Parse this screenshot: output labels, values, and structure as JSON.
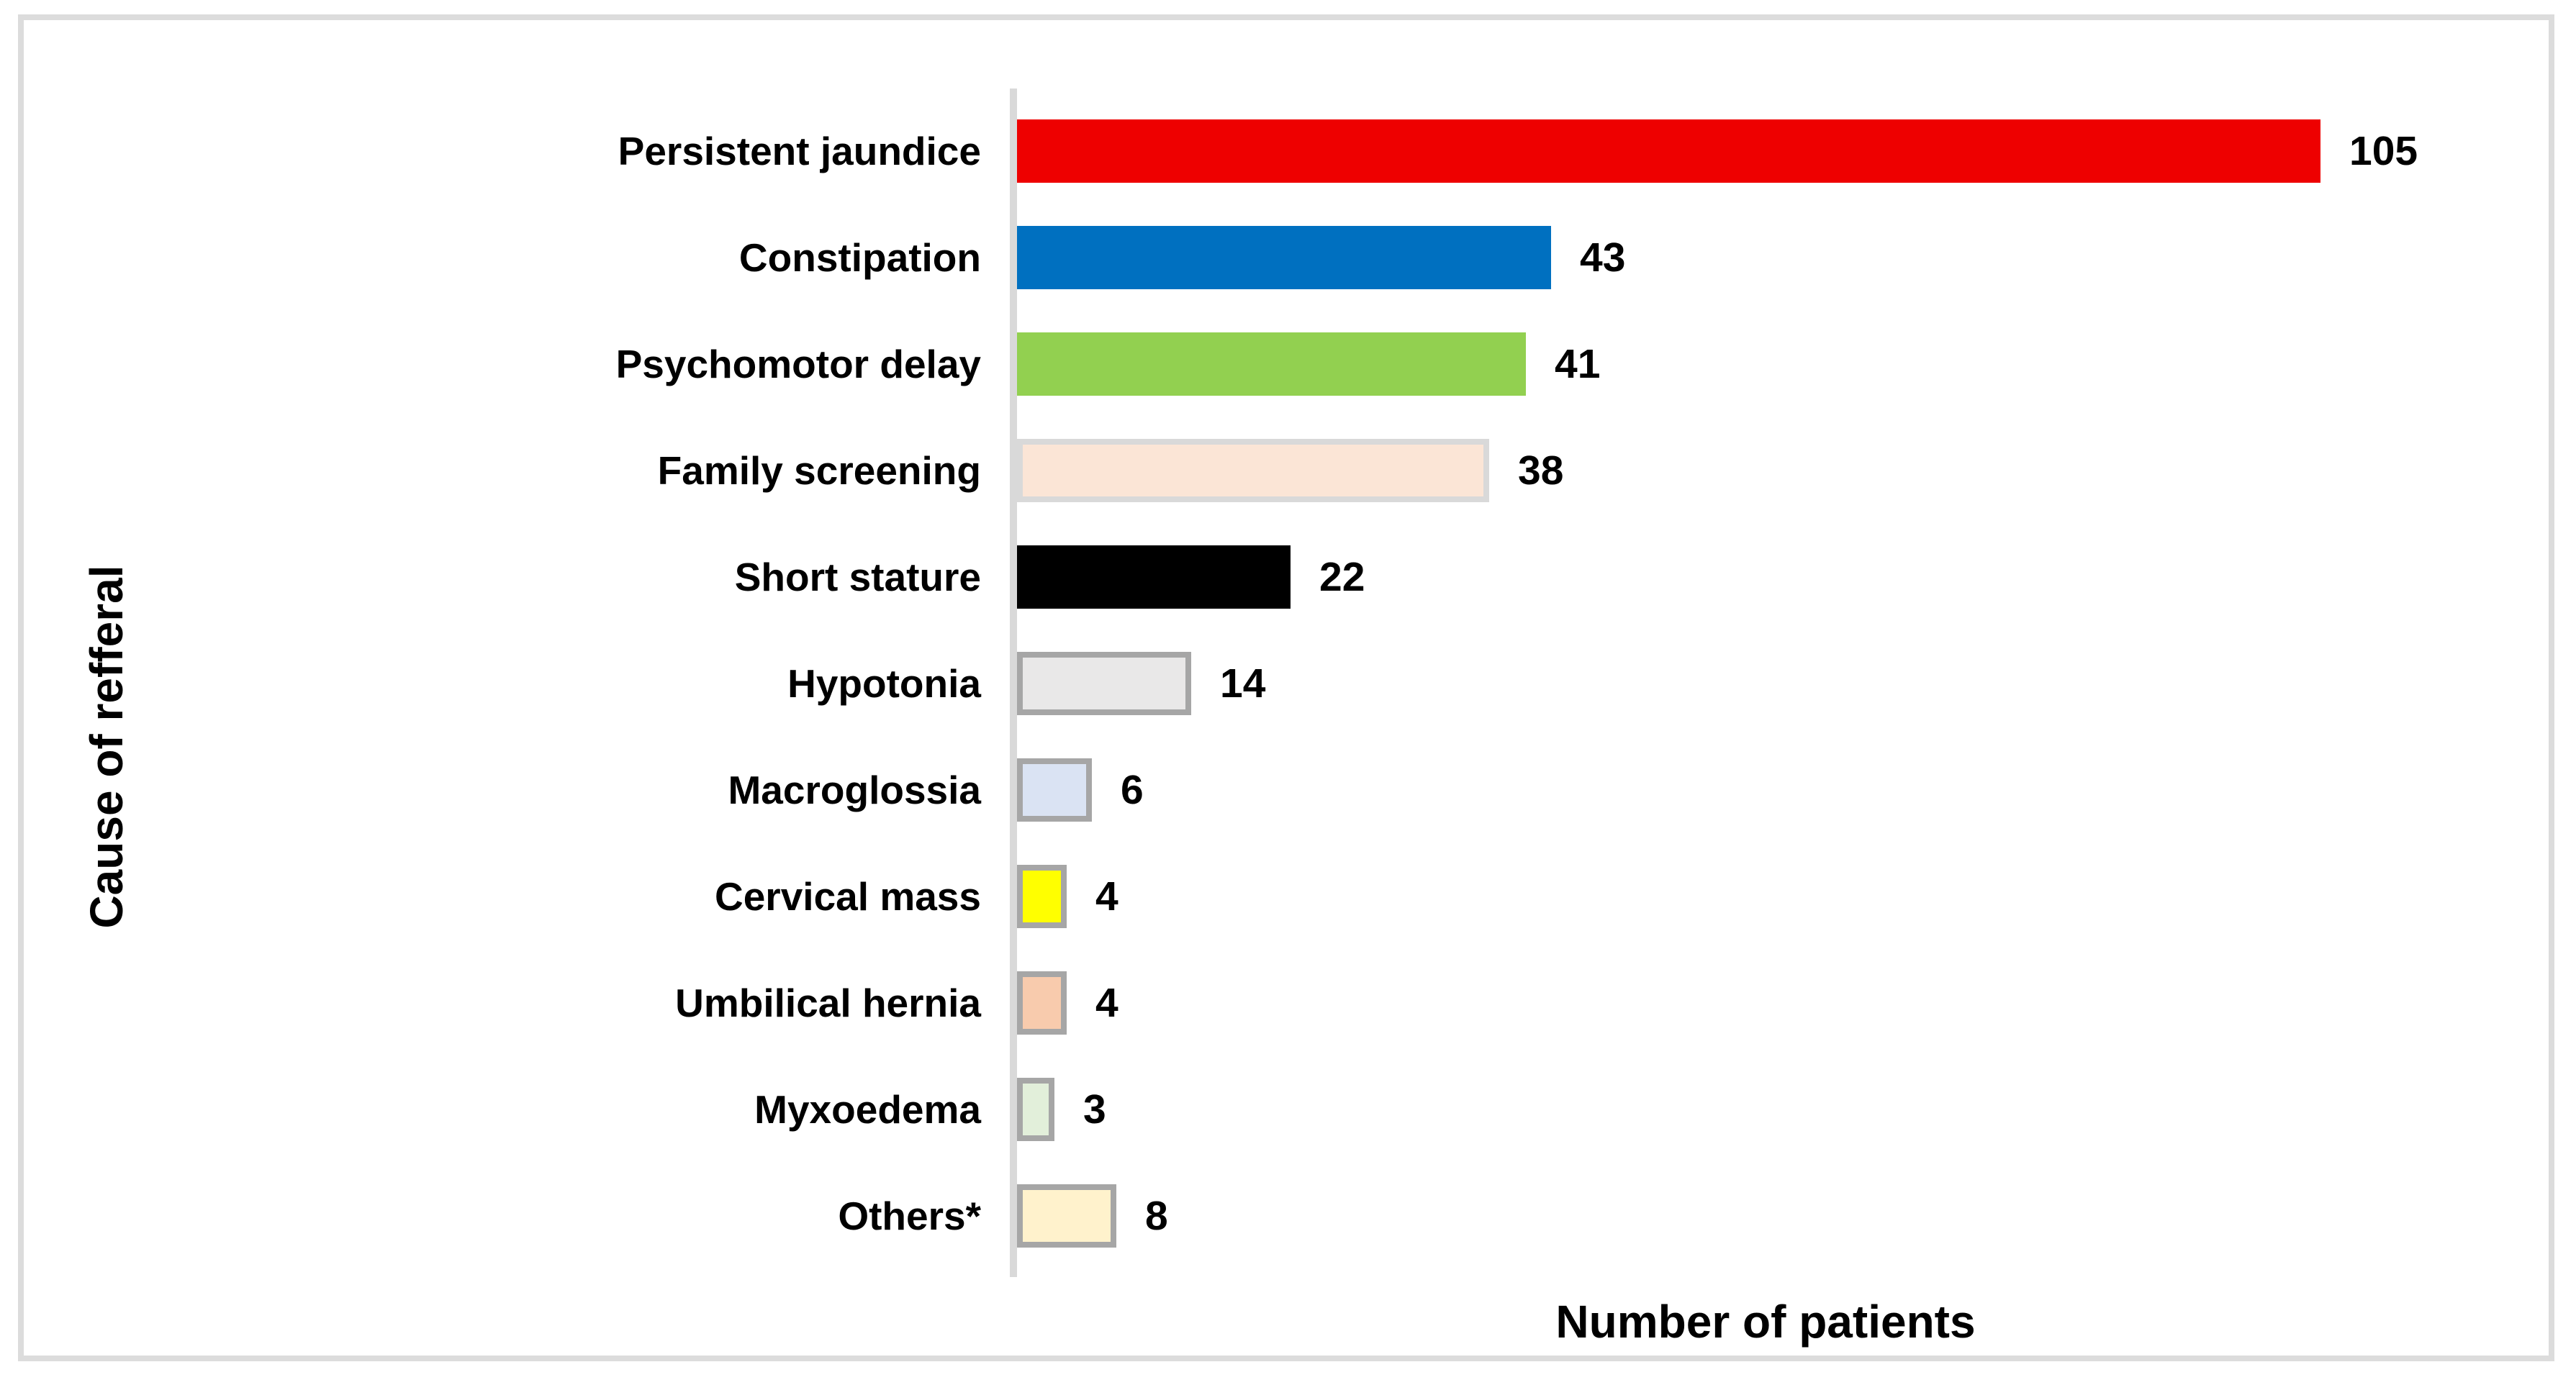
{
  "chart_data": {
    "type": "bar",
    "orientation": "horizontal",
    "categories": [
      "Persistent jaundice",
      "Constipation",
      "Psychomotor delay",
      "Family screening",
      "Short stature",
      "Hypotonia",
      "Macroglossia",
      "Cervical mass",
      "Umbilical hernia",
      "Myxoedema",
      "Others*"
    ],
    "values": [
      105,
      43,
      41,
      38,
      22,
      14,
      6,
      4,
      4,
      3,
      8
    ],
    "data_labels": [
      "105",
      "43",
      "41",
      "38",
      "22",
      "14",
      "6",
      "4",
      "4",
      "3",
      "8"
    ],
    "bar_colors": [
      "#EE0000",
      "#0070C0",
      "#92D050",
      "#FBE5D6",
      "#000000",
      "#E9E8E8",
      "#DAE3F3",
      "#FFFF00",
      "#F8CBAD",
      "#E2EFDA",
      "#FFF2CC"
    ],
    "bar_borders": [
      "none",
      "none",
      "none",
      "#D9D9D9",
      "none",
      "#A6A6A6",
      "#A6A6A6",
      "#A6A6A6",
      "#A6A6A6",
      "#A6A6A6",
      "#A6A6A6"
    ],
    "title": "",
    "xlabel": "Number of patients",
    "ylabel": "Cause of refferal",
    "xlim": [
      0,
      127
    ],
    "grid": false,
    "legend": false,
    "value_labels_position": "end-of-bar"
  },
  "style": {
    "frame_border_color": "#DCDCDC",
    "axis_line_color": "#D9D9D9",
    "text_color": "#000000",
    "background_color": "#FFFFFF"
  }
}
